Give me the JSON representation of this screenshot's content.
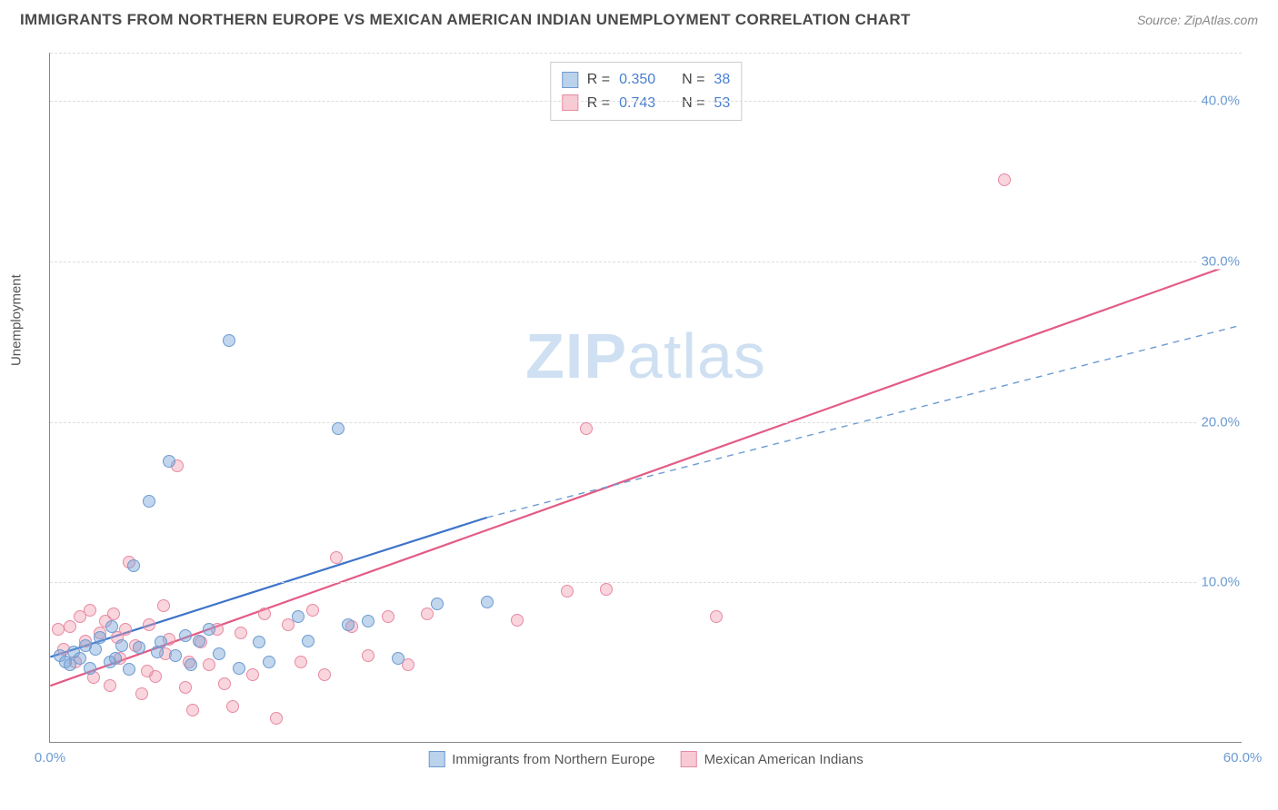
{
  "header": {
    "title": "IMMIGRANTS FROM NORTHERN EUROPE VS MEXICAN AMERICAN INDIAN UNEMPLOYMENT CORRELATION CHART",
    "source": "Source: ZipAtlas.com"
  },
  "chart": {
    "type": "scatter",
    "ylabel": "Unemployment",
    "xlim": [
      0,
      60
    ],
    "ylim": [
      0,
      43
    ],
    "xticks": [
      0.0,
      60.0
    ],
    "xtick_labels": [
      "0.0%",
      "60.0%"
    ],
    "ytick_values": [
      10.0,
      20.0,
      30.0,
      40.0
    ],
    "ytick_labels": [
      "10.0%",
      "20.0%",
      "30.0%",
      "40.0%"
    ],
    "grid_y_extra_top": 43,
    "background_color": "#ffffff",
    "grid_color": "#dddddd",
    "axis_color": "#888888",
    "series": {
      "blue": {
        "label": "Immigrants from Northern Europe",
        "fill": "rgba(120,165,216,0.45)",
        "stroke": "#6c9bd1",
        "r": 0.35,
        "n": 38,
        "trend": {
          "x1": 0,
          "y1": 5.3,
          "x2": 22,
          "y2": 14.0,
          "dash": false,
          "width": 2.2,
          "color": "#3e74c9"
        },
        "trend_ext": {
          "x1": 22,
          "y1": 14.0,
          "x2": 60,
          "y2": 26.0,
          "dash": true,
          "width": 1.4,
          "color": "#6c9bd1"
        },
        "points": [
          [
            0.5,
            5.4
          ],
          [
            0.8,
            5.0
          ],
          [
            1.2,
            5.6
          ],
          [
            1.0,
            4.8
          ],
          [
            1.5,
            5.2
          ],
          [
            1.8,
            6.0
          ],
          [
            2.0,
            4.6
          ],
          [
            2.3,
            5.8
          ],
          [
            2.5,
            6.5
          ],
          [
            3.0,
            5.0
          ],
          [
            3.1,
            7.2
          ],
          [
            3.3,
            5.2
          ],
          [
            3.6,
            6.0
          ],
          [
            4.0,
            4.5
          ],
          [
            4.2,
            11.0
          ],
          [
            4.5,
            5.9
          ],
          [
            5.0,
            15.0
          ],
          [
            5.4,
            5.6
          ],
          [
            5.6,
            6.2
          ],
          [
            6.0,
            17.5
          ],
          [
            6.3,
            5.4
          ],
          [
            6.8,
            6.6
          ],
          [
            7.1,
            4.8
          ],
          [
            7.5,
            6.3
          ],
          [
            8.0,
            7.0
          ],
          [
            8.5,
            5.5
          ],
          [
            9.0,
            25.0
          ],
          [
            9.5,
            4.6
          ],
          [
            10.5,
            6.2
          ],
          [
            11.0,
            5.0
          ],
          [
            12.5,
            7.8
          ],
          [
            13.0,
            6.3
          ],
          [
            14.5,
            19.5
          ],
          [
            15.0,
            7.3
          ],
          [
            16.0,
            7.5
          ],
          [
            17.5,
            5.2
          ],
          [
            19.5,
            8.6
          ],
          [
            22.0,
            8.7
          ]
        ]
      },
      "pink": {
        "label": "Mexican American Indians",
        "fill": "rgba(240,150,170,0.40)",
        "stroke": "#e78aa3",
        "r": 0.743,
        "n": 53,
        "trend": {
          "x1": 0,
          "y1": 3.5,
          "x2": 60,
          "y2": 30.0,
          "dash": false,
          "width": 2.2,
          "color": "#e35b85"
        },
        "points": [
          [
            0.4,
            7.0
          ],
          [
            0.7,
            5.8
          ],
          [
            1.0,
            7.2
          ],
          [
            1.3,
            5.0
          ],
          [
            1.5,
            7.8
          ],
          [
            1.8,
            6.3
          ],
          [
            2.0,
            8.2
          ],
          [
            2.2,
            4.0
          ],
          [
            2.5,
            6.8
          ],
          [
            2.8,
            7.5
          ],
          [
            3.0,
            3.5
          ],
          [
            3.2,
            8.0
          ],
          [
            3.5,
            5.2
          ],
          [
            3.8,
            7.0
          ],
          [
            4.0,
            11.2
          ],
          [
            4.3,
            6.0
          ],
          [
            4.6,
            3.0
          ],
          [
            5.0,
            7.3
          ],
          [
            5.3,
            4.1
          ],
          [
            5.7,
            8.5
          ],
          [
            6.0,
            6.4
          ],
          [
            6.4,
            17.2
          ],
          [
            6.8,
            3.4
          ],
          [
            7.2,
            2.0
          ],
          [
            7.6,
            6.2
          ],
          [
            8.0,
            4.8
          ],
          [
            8.4,
            7.0
          ],
          [
            8.8,
            3.6
          ],
          [
            9.2,
            2.2
          ],
          [
            9.6,
            6.8
          ],
          [
            10.2,
            4.2
          ],
          [
            10.8,
            8.0
          ],
          [
            11.4,
            1.5
          ],
          [
            12.0,
            7.3
          ],
          [
            12.6,
            5.0
          ],
          [
            13.2,
            8.2
          ],
          [
            13.8,
            4.2
          ],
          [
            14.4,
            11.5
          ],
          [
            15.2,
            7.2
          ],
          [
            16.0,
            5.4
          ],
          [
            17.0,
            7.8
          ],
          [
            18.0,
            4.8
          ],
          [
            19.0,
            8.0
          ],
          [
            23.5,
            7.6
          ],
          [
            26.0,
            9.4
          ],
          [
            27.0,
            19.5
          ],
          [
            28.0,
            9.5
          ],
          [
            33.5,
            7.8
          ],
          [
            48.0,
            35.0
          ],
          [
            7.0,
            5.0
          ],
          [
            5.8,
            5.5
          ],
          [
            4.9,
            4.4
          ],
          [
            3.4,
            6.5
          ]
        ]
      }
    },
    "legend_corr": {
      "rows": [
        {
          "color": "blue",
          "r_label": "R =",
          "r_val": "0.350",
          "n_label": "N =",
          "n_val": "38"
        },
        {
          "color": "pink",
          "r_label": "R =",
          "r_val": "0.743",
          "n_label": "N =",
          "n_val": "53"
        }
      ]
    },
    "watermark": {
      "part1": "ZIP",
      "part2": "atlas"
    }
  }
}
